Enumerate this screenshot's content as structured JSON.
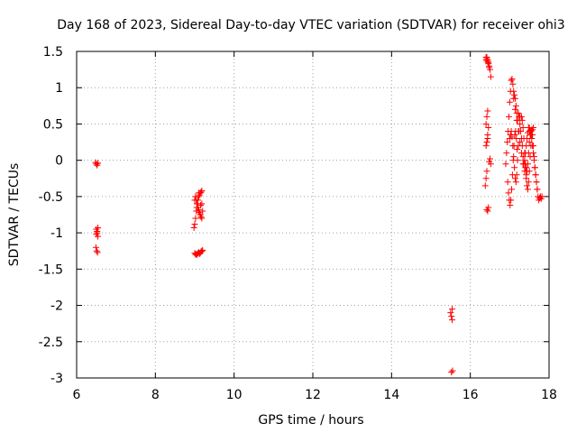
{
  "chart_data": {
    "type": "scatter",
    "title": "Day 168 of 2023, Sidereal Day-to-day VTEC variation (SDTVAR) for receiver ohi3",
    "xlabel": "GPS time / hours",
    "ylabel": "SDTVAR / TECUs",
    "xlim": [
      6,
      18
    ],
    "ylim": [
      -3,
      1.5
    ],
    "xticks": [
      6,
      8,
      10,
      12,
      14,
      16,
      18
    ],
    "xtick_labels": [
      "6",
      "8",
      "10",
      "12",
      "14",
      "16",
      "18"
    ],
    "yticks": [
      -3,
      -2.5,
      -2,
      -1.5,
      -1,
      -0.5,
      0,
      0.5,
      1,
      1.5
    ],
    "ytick_labels": [
      "-3",
      "-2.5",
      "-2",
      "-1.5",
      "-1",
      "-0.5",
      "0",
      "0.5",
      "1",
      "1.5"
    ],
    "grid": true,
    "marker": "+",
    "color": "#ff0000",
    "series": [
      {
        "name": "SDTVAR",
        "x": [
          6.48,
          6.5,
          6.52,
          6.54,
          6.5,
          6.52,
          6.54,
          6.49,
          6.51,
          6.53,
          6.5,
          6.52,
          6.54,
          8.98,
          9.0,
          9.02,
          9.04,
          9.06,
          9.08,
          9.1,
          9.12,
          9.14,
          9.16,
          9.18,
          9.02,
          9.04,
          9.06,
          9.08,
          9.1,
          9.12,
          9.14,
          9.16,
          9.18,
          9.0,
          9.02,
          9.04,
          9.06,
          9.08,
          9.1,
          9.12,
          9.14,
          9.16,
          9.18,
          9.2,
          9.05,
          9.1,
          9.15,
          9.2,
          9.0,
          9.1,
          9.18,
          15.5,
          15.52,
          15.54,
          15.54,
          15.52,
          15.55,
          16.4,
          16.42,
          16.44,
          16.46,
          16.48,
          16.5,
          16.52,
          16.4,
          16.42,
          16.44,
          16.46,
          16.48,
          16.42,
          16.44,
          16.46,
          16.48,
          16.5,
          16.52,
          16.4,
          16.42,
          16.44,
          16.38,
          16.4,
          16.42,
          16.44,
          16.46,
          16.4,
          16.42,
          16.44,
          16.9,
          16.92,
          16.94,
          16.96,
          16.98,
          17.0,
          17.02,
          17.04,
          17.06,
          17.08,
          17.1,
          17.12,
          17.14,
          17.16,
          17.18,
          17.2,
          16.95,
          16.97,
          16.99,
          17.01,
          17.03,
          17.05,
          17.07,
          17.09,
          17.11,
          17.13,
          17.15,
          17.17,
          17.19,
          17.0,
          17.02,
          17.04,
          17.06,
          17.08,
          17.1,
          17.12,
          17.14,
          17.16,
          17.18,
          17.2,
          17.22,
          17.24,
          17.26,
          17.22,
          17.24,
          17.26,
          17.28,
          17.3,
          17.32,
          17.34,
          17.36,
          17.38,
          17.4,
          17.42,
          17.44,
          17.46,
          17.48,
          17.5,
          17.3,
          17.32,
          17.34,
          17.36,
          17.38,
          17.4,
          17.42,
          17.44,
          17.46,
          17.48,
          17.5,
          17.52,
          17.54,
          17.56,
          17.58,
          17.6,
          17.4,
          17.42,
          17.44,
          17.46,
          17.48,
          17.5,
          17.52,
          17.54,
          17.56,
          17.58,
          17.6,
          17.62,
          17.64,
          17.66,
          17.68,
          17.7,
          17.72,
          17.74,
          17.76,
          17.78,
          17.8,
          17.82,
          17.5,
          17.52,
          17.54,
          17.56,
          17.58,
          17.6,
          17.62,
          17.64,
          17.66,
          17.68,
          17.7,
          17.1,
          17.14,
          17.18,
          17.22,
          17.26,
          17.3,
          17.34,
          17.38,
          17.42
        ],
        "y": [
          -0.03,
          -0.05,
          -0.07,
          -0.04,
          -0.95,
          -1.0,
          -1.05,
          -1.2,
          -1.25,
          -1.27,
          -1.02,
          -0.98,
          -0.93,
          -0.93,
          -0.88,
          -0.8,
          -0.7,
          -0.6,
          -0.55,
          -0.5,
          -0.48,
          -0.45,
          -0.44,
          -0.42,
          -0.5,
          -0.55,
          -0.6,
          -0.65,
          -0.7,
          -0.72,
          -0.75,
          -0.78,
          -0.8,
          -1.28,
          -1.3,
          -1.29,
          -1.3,
          -1.28,
          -1.27,
          -1.29,
          -1.28,
          -1.26,
          -1.25,
          -1.24,
          -0.65,
          -0.68,
          -0.62,
          -0.7,
          -0.55,
          -0.45,
          -0.6,
          -2.1,
          -2.15,
          -2.05,
          -2.2,
          -2.92,
          -2.9,
          1.42,
          1.4,
          1.38,
          1.35,
          1.3,
          1.25,
          1.15,
          1.38,
          1.42,
          1.36,
          1.33,
          1.28,
          -0.68,
          -0.7,
          -0.65,
          -0.02,
          0.02,
          -0.05,
          0.2,
          0.25,
          0.3,
          -0.35,
          -0.25,
          -0.15,
          0.35,
          0.45,
          0.5,
          0.6,
          0.68,
          -0.05,
          0.1,
          0.25,
          0.4,
          0.6,
          0.8,
          0.95,
          1.1,
          1.12,
          1.05,
          0.95,
          0.9,
          0.85,
          0.75,
          0.65,
          0.55,
          -0.3,
          -0.45,
          -0.55,
          -0.62,
          -0.55,
          -0.4,
          -0.2,
          0.0,
          0.2,
          0.35,
          0.4,
          0.3,
          0.15,
          0.3,
          0.35,
          0.4,
          0.32,
          0.2,
          0.05,
          -0.1,
          -0.25,
          -0.3,
          -0.2,
          0.0,
          0.2,
          0.4,
          0.6,
          0.65,
          0.6,
          0.5,
          0.4,
          0.3,
          0.2,
          0.05,
          -0.05,
          0.0,
          0.1,
          0.2,
          0.3,
          0.38,
          0.45,
          0.4,
          0.6,
          0.55,
          0.45,
          0.3,
          0.1,
          -0.1,
          -0.25,
          -0.35,
          -0.4,
          -0.3,
          -0.15,
          0.05,
          0.2,
          0.35,
          0.42,
          0.45,
          -0.05,
          -0.1,
          -0.15,
          -0.05,
          0.1,
          0.25,
          0.35,
          0.4,
          0.42,
          0.35,
          0.2,
          0.05,
          -0.1,
          -0.2,
          -0.3,
          -0.4,
          -0.5,
          -0.55,
          -0.52,
          -0.5,
          -0.53,
          -0.5,
          0.45,
          0.4,
          0.35,
          0.3,
          0.2,
          0.1,
          0.0,
          -0.1,
          -0.2,
          -0.3,
          -0.4,
          0.85,
          0.7,
          0.55,
          0.4,
          0.25,
          0.1,
          -0.05,
          -0.15,
          -0.2
        ]
      }
    ]
  }
}
